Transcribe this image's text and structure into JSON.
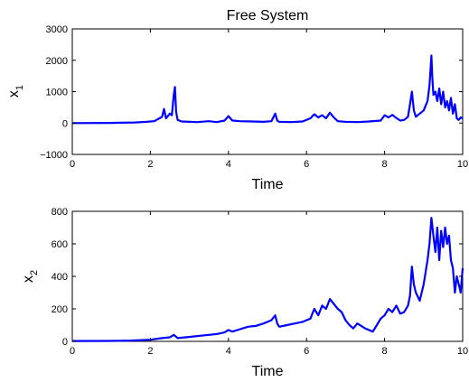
{
  "figure_title": "Free System",
  "chart_data": [
    {
      "type": "line",
      "title": "Free System",
      "xlabel": "Time",
      "ylabel_main": "x",
      "ylabel_sub": "1",
      "xlim": [
        0,
        10
      ],
      "ylim": [
        -1000,
        3000
      ],
      "xticks": [
        "0",
        "2",
        "4",
        "6",
        "8",
        "10"
      ],
      "yticks": [
        "3000",
        "2000",
        "1000",
        "0",
        "−1000"
      ],
      "grid": false,
      "color": "#0000ff",
      "series": [
        {
          "x": [
            0,
            1,
            1.6,
            1.9,
            2.1,
            2.3,
            2.35,
            2.4,
            2.5,
            2.55,
            2.6,
            2.63,
            2.66,
            2.7,
            2.8,
            3.0,
            3.2,
            3.5,
            3.7,
            3.9,
            4.0,
            4.1,
            4.3,
            4.6,
            4.9,
            5.1,
            5.2,
            5.25,
            5.3,
            5.6,
            5.9,
            6.1,
            6.2,
            6.3,
            6.4,
            6.5,
            6.6,
            6.7,
            6.8,
            7.0,
            7.3,
            7.6,
            7.9,
            8.0,
            8.1,
            8.2,
            8.3,
            8.4,
            8.5,
            8.6,
            8.65,
            8.7,
            8.75,
            8.8,
            8.9,
            9.0,
            9.1,
            9.15,
            9.2,
            9.22,
            9.25,
            9.3,
            9.35,
            9.4,
            9.45,
            9.5,
            9.55,
            9.6,
            9.65,
            9.7,
            9.75,
            9.8,
            9.85,
            9.9,
            9.95,
            10.0
          ],
          "y": [
            0,
            5,
            20,
            40,
            60,
            200,
            450,
            150,
            300,
            250,
            900,
            1150,
            350,
            100,
            50,
            40,
            30,
            60,
            30,
            80,
            220,
            80,
            60,
            50,
            40,
            60,
            300,
            80,
            40,
            30,
            50,
            150,
            280,
            180,
            250,
            150,
            330,
            180,
            60,
            40,
            30,
            50,
            80,
            250,
            180,
            260,
            160,
            80,
            100,
            200,
            600,
            1000,
            400,
            200,
            300,
            400,
            700,
            1200,
            2150,
            1500,
            900,
            1000,
            700,
            1100,
            600,
            1000,
            500,
            700,
            400,
            800,
            300,
            600,
            150,
            100,
            180,
            150
          ]
        }
      ]
    },
    {
      "type": "line",
      "title": "",
      "xlabel": "Time",
      "ylabel_main": "x",
      "ylabel_sub": "2",
      "xlim": [
        0,
        10
      ],
      "ylim": [
        0,
        800
      ],
      "xticks": [
        "0",
        "2",
        "4",
        "6",
        "8",
        "10"
      ],
      "yticks": [
        "800",
        "600",
        "400",
        "200",
        "0"
      ],
      "grid": false,
      "color": "#0000ff",
      "series": [
        {
          "x": [
            0,
            1,
            1.5,
            2,
            2.3,
            2.5,
            2.6,
            2.65,
            2.7,
            2.9,
            3.1,
            3.3,
            3.5,
            3.7,
            3.9,
            4.0,
            4.1,
            4.3,
            4.5,
            4.7,
            4.9,
            5.0,
            5.1,
            5.2,
            5.25,
            5.3,
            5.5,
            5.7,
            5.9,
            6.1,
            6.2,
            6.3,
            6.4,
            6.5,
            6.6,
            6.7,
            6.8,
            6.9,
            7.0,
            7.1,
            7.2,
            7.3,
            7.5,
            7.7,
            7.8,
            7.9,
            8.0,
            8.1,
            8.2,
            8.3,
            8.4,
            8.5,
            8.6,
            8.65,
            8.7,
            8.75,
            8.8,
            8.9,
            9.0,
            9.1,
            9.15,
            9.2,
            9.25,
            9.3,
            9.35,
            9.4,
            9.45,
            9.5,
            9.55,
            9.6,
            9.65,
            9.7,
            9.75,
            9.8,
            9.85,
            9.9,
            9.95,
            10.0
          ],
          "y": [
            2,
            3,
            5,
            10,
            20,
            25,
            40,
            30,
            20,
            25,
            30,
            35,
            40,
            45,
            55,
            70,
            60,
            75,
            90,
            95,
            110,
            120,
            130,
            160,
            110,
            90,
            100,
            110,
            120,
            140,
            200,
            160,
            220,
            200,
            260,
            230,
            200,
            180,
            130,
            100,
            80,
            110,
            80,
            60,
            100,
            140,
            160,
            200,
            180,
            220,
            170,
            180,
            220,
            280,
            460,
            350,
            300,
            250,
            350,
            500,
            600,
            760,
            650,
            550,
            700,
            500,
            680,
            580,
            700,
            600,
            650,
            500,
            450,
            300,
            400,
            350,
            300,
            450
          ]
        }
      ]
    }
  ]
}
